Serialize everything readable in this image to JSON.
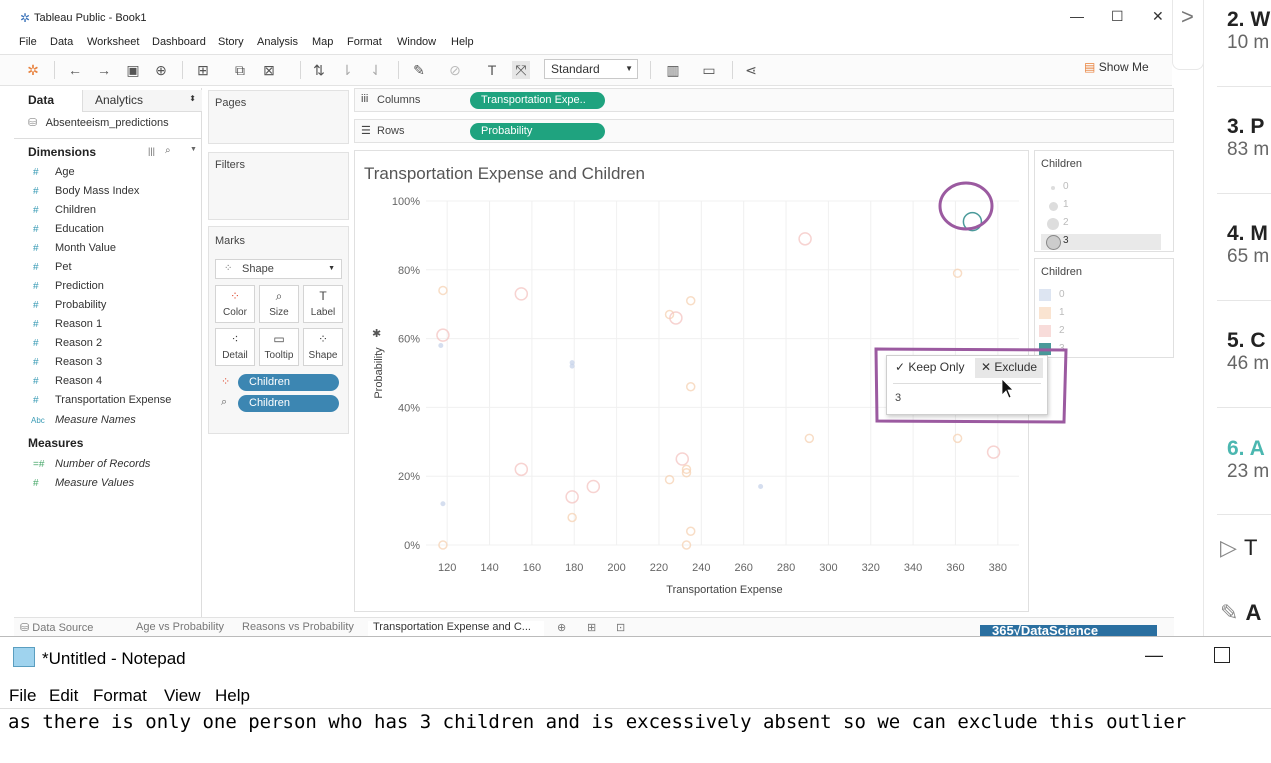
{
  "tableau": {
    "title": "Tableau Public - Book1",
    "menu": [
      "File",
      "Data",
      "Worksheet",
      "Dashboard",
      "Story",
      "Analysis",
      "Map",
      "Format",
      "Window",
      "Help"
    ],
    "toolbar": {
      "fit_select": "Standard",
      "show_me": "Show Me"
    },
    "data_pane": {
      "tab_data": "Data",
      "tab_analytics": "Analytics",
      "datasource": "Absenteeism_predictions",
      "dimensions_label": "Dimensions",
      "dimensions": [
        "Age",
        "Body Mass Index",
        "Children",
        "Education",
        "Month Value",
        "Pet",
        "Prediction",
        "Probability",
        "Reason 1",
        "Reason 2",
        "Reason 3",
        "Reason 4",
        "Transportation Expense"
      ],
      "measure_names_type": "Abc",
      "measure_names": "Measure Names",
      "measures_label": "Measures",
      "measures": [
        "Number of Records",
        "Measure Values"
      ]
    },
    "shelves": {
      "pages": "Pages",
      "filters": "Filters",
      "columns_label": "Columns",
      "columns_pill": "Transportation Expe..",
      "rows_label": "Rows",
      "rows_pill": "Probability"
    },
    "marks": {
      "label": "Marks",
      "type": "Shape",
      "buttons": [
        "Color",
        "Size",
        "Label",
        "Detail",
        "Tooltip",
        "Shape"
      ],
      "pills": [
        "Children",
        "Children"
      ]
    },
    "legends": {
      "size_title": "Children",
      "size_items": [
        "0",
        "1",
        "2",
        "3"
      ],
      "color_title": "Children",
      "color_items": [
        "0",
        "1",
        "2",
        "3"
      ],
      "colors": [
        "#c7d3ea",
        "#f6d2b3",
        "#f4c4c1",
        "#4a9a9a"
      ]
    },
    "context_menu": {
      "keep_only": "Keep Only",
      "exclude": "Exclude",
      "value": "3"
    },
    "sheet_tabs": [
      "Data Source",
      "Age vs Probability",
      "Reasons vs Probability",
      "Transportation Expense and C..."
    ],
    "brand_badge": "365√DataScience"
  },
  "chart_data": {
    "type": "scatter",
    "title": "Transportation Expense and Children",
    "xlabel": "Transportation Expense",
    "ylabel": "Probability",
    "xlim": [
      110,
      390
    ],
    "ylim": [
      0,
      1
    ],
    "x_ticks": [
      "120",
      "140",
      "160",
      "180",
      "200",
      "220",
      "240",
      "260",
      "280",
      "300",
      "320",
      "340",
      "360",
      "380"
    ],
    "y_ticks": [
      "0%",
      "20%",
      "40%",
      "60%",
      "80%",
      "100%"
    ],
    "grid": true,
    "legend": "right",
    "points": [
      {
        "x": 368,
        "y": 0.94,
        "children": 3
      },
      {
        "x": 289,
        "y": 0.89,
        "children": 2
      },
      {
        "x": 361,
        "y": 0.79,
        "children": 1
      },
      {
        "x": 118,
        "y": 0.74,
        "children": 1
      },
      {
        "x": 155,
        "y": 0.73,
        "children": 2
      },
      {
        "x": 235,
        "y": 0.71,
        "children": 1
      },
      {
        "x": 225,
        "y": 0.67,
        "children": 1
      },
      {
        "x": 228,
        "y": 0.66,
        "children": 2
      },
      {
        "x": 118,
        "y": 0.61,
        "children": 2
      },
      {
        "x": 117,
        "y": 0.58,
        "children": 0
      },
      {
        "x": 179,
        "y": 0.53,
        "children": 0
      },
      {
        "x": 179,
        "y": 0.52,
        "children": 0
      },
      {
        "x": 235,
        "y": 0.46,
        "children": 1
      },
      {
        "x": 291,
        "y": 0.31,
        "children": 1
      },
      {
        "x": 361,
        "y": 0.31,
        "children": 1
      },
      {
        "x": 378,
        "y": 0.27,
        "children": 2
      },
      {
        "x": 155,
        "y": 0.22,
        "children": 2
      },
      {
        "x": 231,
        "y": 0.25,
        "children": 2
      },
      {
        "x": 233,
        "y": 0.22,
        "children": 1
      },
      {
        "x": 233,
        "y": 0.21,
        "children": 1
      },
      {
        "x": 225,
        "y": 0.19,
        "children": 1
      },
      {
        "x": 189,
        "y": 0.17,
        "children": 2
      },
      {
        "x": 179,
        "y": 0.14,
        "children": 2
      },
      {
        "x": 268,
        "y": 0.17,
        "children": 0
      },
      {
        "x": 118,
        "y": 0.12,
        "children": 0
      },
      {
        "x": 179,
        "y": 0.08,
        "children": 1
      },
      {
        "x": 235,
        "y": 0.04,
        "children": 1
      },
      {
        "x": 118,
        "y": 0.0,
        "children": 1
      },
      {
        "x": 233,
        "y": 0.0,
        "children": 1
      }
    ]
  },
  "course_sidebar": {
    "items": [
      {
        "num": "2. W",
        "mins": "10 m"
      },
      {
        "num": "3. P",
        "mins": "83 m"
      },
      {
        "num": "4. M",
        "mins": "65 m"
      },
      {
        "num": "5. C",
        "mins": "46 m"
      },
      {
        "num": "6. A",
        "mins": "23 m"
      }
    ],
    "active_color": "#4bb7b0",
    "play_label": "T",
    "edit_label": "A"
  },
  "notepad": {
    "title": "*Untitled - Notepad",
    "menu": [
      "File",
      "Edit",
      "Format",
      "View",
      "Help"
    ],
    "text": "as there is only one person who has 3 children and is excessively absent so we can exclude this outlier"
  }
}
